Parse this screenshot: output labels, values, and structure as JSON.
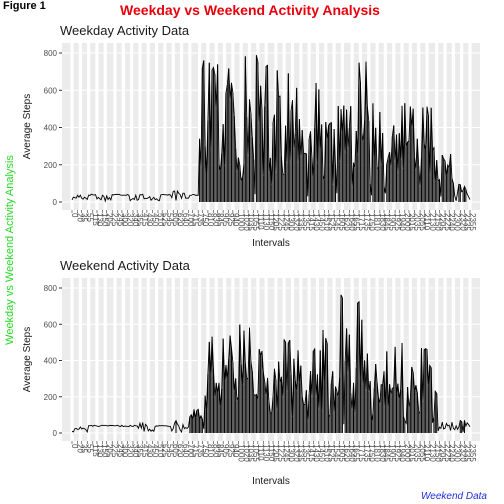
{
  "figure_label": "Figure 1",
  "title": "Weekday vs Weekend Activity Analysis",
  "left_label": "Weekday vs Weekend Activity Analysis",
  "caption": "Weekend Data",
  "colors": {
    "title": "#e8000d",
    "left_label": "#28d828",
    "caption": "#1f2fd8",
    "panel_bg": "#ebebeb",
    "grid": "#ffffff",
    "data": "#000000"
  },
  "chart_data": [
    {
      "type": "line",
      "title": "Weekday Activity Data",
      "xlabel": "Intervals",
      "ylabel": "Average Steps",
      "ylim": [
        0,
        800
      ],
      "yticks": [
        0,
        200,
        400,
        600,
        800
      ],
      "x_interval_range": [
        0,
        2355
      ],
      "x_interval_step": 5,
      "grid": true,
      "series": [
        {
          "activity_bursts": [
            {
              "start": 0,
              "end": 55,
              "peak": 45
            },
            {
              "start": 130,
              "end": 220,
              "peak": 50
            },
            {
              "start": 330,
              "end": 400,
              "peak": 45
            },
            {
              "start": 420,
              "end": 520,
              "peak": 40
            },
            {
              "start": 600,
              "end": 700,
              "peak": 60
            },
            {
              "start": 740,
              "end": 800,
              "peak": 795
            },
            {
              "start": 800,
              "end": 855,
              "peak": 790
            },
            {
              "start": 900,
              "end": 955,
              "peak": 775
            },
            {
              "start": 1000,
              "end": 1055,
              "peak": 790
            },
            {
              "start": 1100,
              "end": 1155,
              "peak": 795
            },
            {
              "start": 1200,
              "end": 1255,
              "peak": 780
            },
            {
              "start": 1300,
              "end": 1355,
              "peak": 700
            },
            {
              "start": 1400,
              "end": 1455,
              "peak": 640
            },
            {
              "start": 1500,
              "end": 1555,
              "peak": 430
            },
            {
              "start": 1600,
              "end": 1655,
              "peak": 545
            },
            {
              "start": 1700,
              "end": 1755,
              "peak": 765
            },
            {
              "start": 1800,
              "end": 1855,
              "peak": 550
            },
            {
              "start": 1900,
              "end": 1955,
              "peak": 520
            },
            {
              "start": 2000,
              "end": 2055,
              "peak": 555
            },
            {
              "start": 2100,
              "end": 2155,
              "peak": 540
            },
            {
              "start": 2200,
              "end": 2255,
              "peak": 270
            },
            {
              "start": 2300,
              "end": 2355,
              "peak": 100
            }
          ]
        }
      ]
    },
    {
      "type": "line",
      "title": "Weekend Activity Data",
      "xlabel": "Intervals",
      "ylabel": "Average Steps",
      "ylim": [
        0,
        800
      ],
      "yticks": [
        0,
        200,
        400,
        600,
        800
      ],
      "x_interval_range": [
        0,
        2355
      ],
      "x_interval_step": 5,
      "grid": true,
      "series": [
        {
          "activity_bursts": [
            {
              "start": 0,
              "end": 55,
              "peak": 35
            },
            {
              "start": 400,
              "end": 455,
              "peak": 60
            },
            {
              "start": 600,
              "end": 655,
              "peak": 90
            },
            {
              "start": 700,
              "end": 755,
              "peak": 170
            },
            {
              "start": 800,
              "end": 855,
              "peak": 540
            },
            {
              "start": 900,
              "end": 955,
              "peak": 540
            },
            {
              "start": 1000,
              "end": 1055,
              "peak": 600
            },
            {
              "start": 1100,
              "end": 1155,
              "peak": 465
            },
            {
              "start": 1200,
              "end": 1255,
              "peak": 520
            },
            {
              "start": 1300,
              "end": 1355,
              "peak": 550
            },
            {
              "start": 1400,
              "end": 1455,
              "peak": 465
            },
            {
              "start": 1500,
              "end": 1555,
              "peak": 580
            },
            {
              "start": 1600,
              "end": 1655,
              "peak": 785
            },
            {
              "start": 1700,
              "end": 1755,
              "peak": 740
            },
            {
              "start": 1800,
              "end": 1855,
              "peak": 500
            },
            {
              "start": 1900,
              "end": 1955,
              "peak": 500
            },
            {
              "start": 2000,
              "end": 2055,
              "peak": 400
            },
            {
              "start": 2100,
              "end": 2155,
              "peak": 480
            },
            {
              "start": 2200,
              "end": 2255,
              "peak": 60
            },
            {
              "start": 2300,
              "end": 2355,
              "peak": 80
            }
          ]
        }
      ]
    }
  ]
}
